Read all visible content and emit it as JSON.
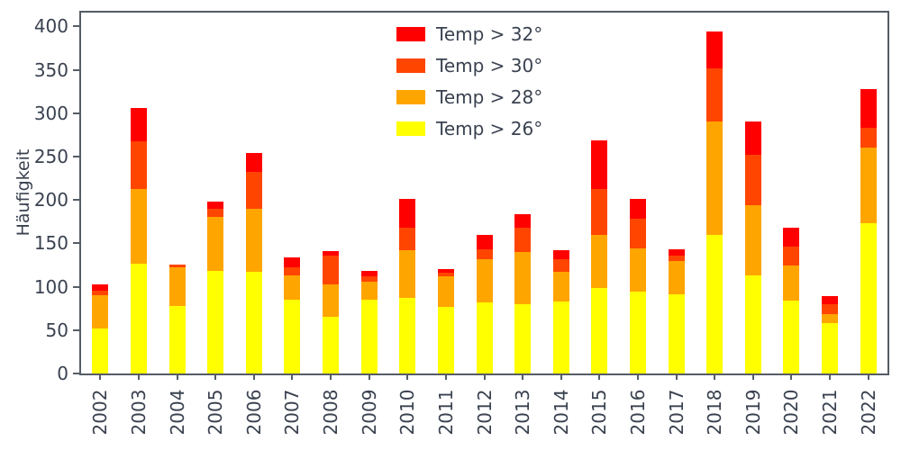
{
  "colors": {
    "text": "#3a4250",
    "spine": "#555d66"
  },
  "chart_data": {
    "type": "bar",
    "stacked": true,
    "title": "",
    "xlabel": "",
    "ylabel": "Häufigkeit",
    "ylim": [
      0,
      418
    ],
    "yticks": [
      0,
      50,
      100,
      150,
      200,
      250,
      300,
      350,
      400
    ],
    "grid": false,
    "legend_position": "upper center (inside plot)",
    "legend": [
      "Temp > 32°",
      "Temp > 30°",
      "Temp > 28°",
      "Temp > 26°"
    ],
    "categories": [
      "2002",
      "2003",
      "2004",
      "2005",
      "2006",
      "2007",
      "2008",
      "2009",
      "2010",
      "2011",
      "2012",
      "2013",
      "2014",
      "2015",
      "2016",
      "2017",
      "2018",
      "2019",
      "2020",
      "2021",
      "2022"
    ],
    "series": [
      {
        "name": "Temp > 26°",
        "color": "#ffff00",
        "values": [
          52,
          127,
          78,
          118,
          117,
          85,
          65,
          85,
          87,
          77,
          82,
          80,
          83,
          99,
          94,
          91,
          160,
          113,
          84,
          58,
          173
        ]
      },
      {
        "name": "Temp > 28°",
        "color": "#ffa500",
        "values": [
          38,
          86,
          44,
          62,
          73,
          28,
          38,
          21,
          55,
          35,
          50,
          60,
          34,
          61,
          50,
          39,
          130,
          81,
          41,
          10,
          87
        ]
      },
      {
        "name": "Temp > 30°",
        "color": "#ff4500",
        "values": [
          5,
          55,
          4,
          10,
          42,
          9,
          33,
          6,
          26,
          4,
          11,
          28,
          15,
          53,
          34,
          6,
          62,
          58,
          21,
          12,
          23
        ]
      },
      {
        "name": "Temp > 32°",
        "color": "#ff0000",
        "values": [
          8,
          38,
          0,
          8,
          22,
          12,
          5,
          6,
          33,
          4,
          17,
          16,
          10,
          56,
          23,
          7,
          42,
          38,
          22,
          9,
          45
        ]
      }
    ],
    "totals": [
      103,
      306,
      126,
      198,
      254,
      134,
      141,
      118,
      201,
      120,
      160,
      184,
      142,
      269,
      201,
      143,
      394,
      290,
      168,
      89,
      328
    ]
  }
}
